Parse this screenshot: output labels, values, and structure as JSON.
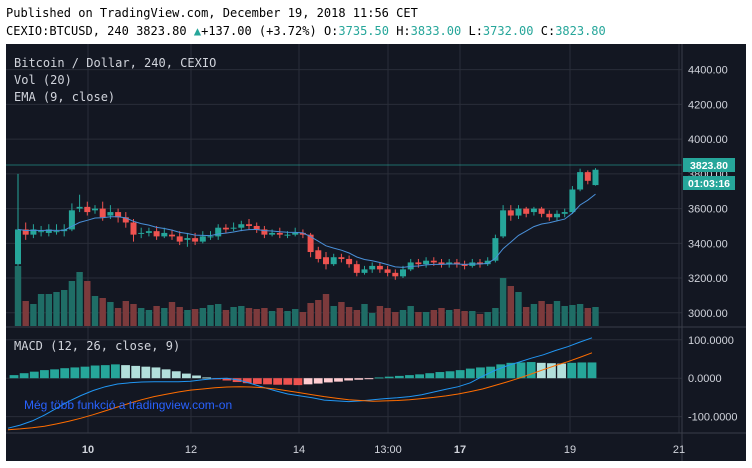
{
  "header": {
    "published": "Published on TradingView.com, December 19, 2018 11:56 CET",
    "symbol": "CEXIO:BTCUSD, 240",
    "last": "3823.80",
    "change": "+137.00 (+3.72%)",
    "o_label": "O:",
    "o_value": "3735.50",
    "h_label": "H:",
    "h_value": "3833.00",
    "l_label": "L:",
    "l_value": "3732.00",
    "c_label": "C:",
    "c_value": "3823.80"
  },
  "legend": {
    "title": "Bitcoin / Dollar, 240, CEXIO",
    "volume": "Vol (20)",
    "ema": "EMA (9, close)",
    "macd": "MACD (12, 26, close, 9)"
  },
  "watermark": "Még több funkció a tradingview.com-on",
  "price_badge": "3823.80",
  "time_badge": "01:03:16",
  "colors": {
    "background": "#131722",
    "grid": "#2a2e39",
    "up": "#26a69a",
    "down": "#ef5350",
    "up_volume": "#1f6d66",
    "down_volume": "#7c3a3c",
    "ema": "#4a90d9",
    "macd_line": "#2196f3",
    "signal_line": "#ff6d00",
    "watermark": "#2962ff"
  },
  "chart_data": [
    {
      "type": "candlestick",
      "title": "Bitcoin / Dollar, 240, CEXIO",
      "y_ticks": [
        "4400.00",
        "4200.00",
        "4000.00",
        "3800.00",
        "3600.00",
        "3400.00",
        "3200.00",
        "3000.00"
      ],
      "x_ticks": [
        "10",
        "12",
        "14",
        "13:00",
        "17",
        "19",
        "21"
      ],
      "ylim": [
        2970,
        4450
      ],
      "candles": [
        [
          3280,
          3480,
          3800,
          3270
        ],
        [
          3480,
          3450,
          3520,
          3420
        ],
        [
          3450,
          3480,
          3510,
          3430
        ],
        [
          3470,
          3470,
          3500,
          3440
        ],
        [
          3460,
          3480,
          3510,
          3440
        ],
        [
          3470,
          3470,
          3510,
          3450
        ],
        [
          3470,
          3480,
          3510,
          3440
        ],
        [
          3480,
          3590,
          3630,
          3470
        ],
        [
          3600,
          3610,
          3680,
          3580
        ],
        [
          3610,
          3580,
          3640,
          3560
        ],
        [
          3590,
          3600,
          3620,
          3570
        ],
        [
          3600,
          3550,
          3640,
          3530
        ],
        [
          3560,
          3580,
          3620,
          3540
        ],
        [
          3580,
          3550,
          3600,
          3520
        ],
        [
          3550,
          3520,
          3580,
          3490
        ],
        [
          3520,
          3450,
          3540,
          3410
        ],
        [
          3460,
          3460,
          3490,
          3430
        ],
        [
          3460,
          3470,
          3490,
          3440
        ],
        [
          3470,
          3440,
          3500,
          3420
        ],
        [
          3440,
          3460,
          3490,
          3430
        ],
        [
          3450,
          3440,
          3480,
          3420
        ],
        [
          3440,
          3410,
          3470,
          3390
        ],
        [
          3420,
          3430,
          3460,
          3380
        ],
        [
          3430,
          3410,
          3460,
          3390
        ],
        [
          3410,
          3440,
          3470,
          3400
        ],
        [
          3440,
          3440,
          3470,
          3420
        ],
        [
          3440,
          3490,
          3510,
          3420
        ],
        [
          3490,
          3480,
          3510,
          3460
        ],
        [
          3490,
          3490,
          3520,
          3470
        ],
        [
          3490,
          3510,
          3530,
          3470
        ],
        [
          3510,
          3500,
          3540,
          3480
        ],
        [
          3500,
          3480,
          3520,
          3460
        ],
        [
          3480,
          3450,
          3500,
          3430
        ],
        [
          3450,
          3460,
          3480,
          3440
        ],
        [
          3460,
          3450,
          3490,
          3430
        ],
        [
          3450,
          3450,
          3470,
          3430
        ],
        [
          3450,
          3460,
          3490,
          3440
        ],
        [
          3460,
          3450,
          3480,
          3430
        ],
        [
          3450,
          3350,
          3460,
          3320
        ],
        [
          3360,
          3310,
          3380,
          3290
        ],
        [
          3320,
          3280,
          3350,
          3250
        ],
        [
          3280,
          3320,
          3340,
          3270
        ],
        [
          3320,
          3310,
          3340,
          3290
        ],
        [
          3310,
          3280,
          3330,
          3260
        ],
        [
          3280,
          3230,
          3300,
          3210
        ],
        [
          3230,
          3250,
          3270,
          3220
        ],
        [
          3250,
          3270,
          3290,
          3230
        ],
        [
          3270,
          3250,
          3290,
          3230
        ],
        [
          3250,
          3230,
          3270,
          3210
        ],
        [
          3230,
          3210,
          3250,
          3190
        ],
        [
          3210,
          3250,
          3270,
          3200
        ],
        [
          3250,
          3290,
          3310,
          3240
        ],
        [
          3290,
          3280,
          3310,
          3260
        ],
        [
          3280,
          3300,
          3320,
          3260
        ],
        [
          3300,
          3290,
          3320,
          3270
        ],
        [
          3290,
          3280,
          3310,
          3260
        ],
        [
          3280,
          3290,
          3310,
          3260
        ],
        [
          3290,
          3280,
          3310,
          3260
        ],
        [
          3280,
          3270,
          3300,
          3250
        ],
        [
          3270,
          3290,
          3310,
          3260
        ],
        [
          3290,
          3280,
          3310,
          3260
        ],
        [
          3280,
          3300,
          3320,
          3270
        ],
        [
          3300,
          3430,
          3450,
          3290
        ],
        [
          3440,
          3590,
          3620,
          3430
        ],
        [
          3590,
          3560,
          3620,
          3530
        ],
        [
          3560,
          3600,
          3620,
          3540
        ],
        [
          3600,
          3570,
          3610,
          3550
        ],
        [
          3580,
          3600,
          3610,
          3560
        ],
        [
          3600,
          3570,
          3610,
          3550
        ],
        [
          3570,
          3550,
          3590,
          3530
        ],
        [
          3550,
          3570,
          3590,
          3530
        ],
        [
          3570,
          3580,
          3600,
          3550
        ],
        [
          3580,
          3710,
          3730,
          3570
        ],
        [
          3710,
          3810,
          3830,
          3700
        ],
        [
          3810,
          3760,
          3820,
          3740
        ],
        [
          3735.5,
          3823.8,
          3833,
          3732
        ]
      ]
    },
    {
      "type": "bar",
      "title": "Vol (20)",
      "relative_values": [
        0.6,
        0.25,
        0.22,
        0.32,
        0.32,
        0.34,
        0.36,
        0.45,
        0.54,
        0.45,
        0.3,
        0.28,
        0.24,
        0.18,
        0.25,
        0.22,
        0.18,
        0.16,
        0.2,
        0.18,
        0.24,
        0.19,
        0.16,
        0.17,
        0.18,
        0.21,
        0.22,
        0.16,
        0.19,
        0.2,
        0.18,
        0.17,
        0.18,
        0.15,
        0.18,
        0.15,
        0.17,
        0.14,
        0.23,
        0.26,
        0.32,
        0.2,
        0.24,
        0.19,
        0.16,
        0.22,
        0.13,
        0.2,
        0.18,
        0.14,
        0.16,
        0.2,
        0.14,
        0.14,
        0.16,
        0.18,
        0.16,
        0.17,
        0.15,
        0.15,
        0.12,
        0.14,
        0.18,
        0.48,
        0.4,
        0.34,
        0.19,
        0.22,
        0.25,
        0.22,
        0.25,
        0.2,
        0.21,
        0.22,
        0.18,
        0.19
      ]
    },
    {
      "type": "line",
      "title": "MACD (12, 26, close, 9)",
      "y_ticks": [
        "100.0000",
        "0.0000",
        "-100.0000"
      ],
      "ylim": [
        -140,
        115
      ],
      "series": [
        {
          "role": "macd",
          "values": [
            -130,
            -122,
            -111,
            -96,
            -78,
            -60,
            -45,
            -32,
            -22,
            -15,
            -12,
            -10,
            -9,
            -9,
            -9,
            -8,
            -4,
            -1,
            0,
            -5,
            -14,
            -24,
            -33,
            -41,
            -46,
            -51,
            -57,
            -59,
            -61,
            -59,
            -56,
            -53,
            -51,
            -48,
            -43,
            -36,
            -29,
            -22,
            -12,
            5,
            20,
            32,
            42,
            52,
            61,
            72,
            82,
            94,
            105
          ]
        },
        {
          "role": "signal",
          "values": [
            -134,
            -132,
            -129,
            -125,
            -119,
            -112,
            -104,
            -95,
            -85,
            -75,
            -65,
            -56,
            -48,
            -42,
            -36,
            -31,
            -28,
            -25,
            -23,
            -22,
            -23,
            -25,
            -28,
            -33,
            -38,
            -43,
            -48,
            -52,
            -56,
            -58,
            -60,
            -59,
            -58,
            -56,
            -53,
            -50,
            -46,
            -41,
            -35,
            -28,
            -19,
            -10,
            0,
            11,
            22,
            33,
            43,
            54,
            66
          ]
        },
        {
          "role": "histogram",
          "values": [
            8,
            13,
            17,
            21,
            23,
            26,
            28,
            30,
            33,
            34,
            36,
            34,
            32,
            30,
            28,
            23,
            18,
            12,
            7,
            2,
            -3,
            -6,
            -10,
            -13,
            -15,
            -16,
            -17,
            -17,
            -18,
            -16,
            -14,
            -11,
            -9,
            -6,
            -4,
            -2,
            2,
            4,
            6,
            8,
            10,
            13,
            16,
            18,
            21,
            25,
            28,
            30,
            36,
            40,
            41,
            42,
            40,
            39,
            38,
            40,
            41,
            41
          ]
        }
      ]
    }
  ]
}
